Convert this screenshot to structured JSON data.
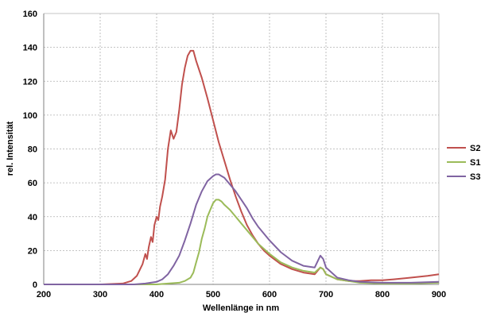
{
  "chart_data": {
    "type": "line",
    "xlabel": "Wellenlänge in nm",
    "ylabel": "rel. Intensität",
    "xlim": [
      200,
      900
    ],
    "ylim": [
      0,
      160
    ],
    "x_ticks": [
      "200",
      "300",
      "400",
      "500",
      "600",
      "700",
      "800",
      "900"
    ],
    "y_ticks": [
      "0",
      "20",
      "40",
      "60",
      "80",
      "100",
      "120",
      "140",
      "160"
    ],
    "grid": true,
    "legend_position": "right",
    "series": [
      {
        "name": "S2",
        "color": "#c0504d",
        "points": [
          [
            200,
            0
          ],
          [
            300,
            0
          ],
          [
            340,
            0.5
          ],
          [
            355,
            2
          ],
          [
            365,
            5
          ],
          [
            375,
            12
          ],
          [
            380,
            18
          ],
          [
            383,
            15
          ],
          [
            386,
            22
          ],
          [
            390,
            28
          ],
          [
            393,
            25
          ],
          [
            396,
            35
          ],
          [
            400,
            40
          ],
          [
            403,
            38
          ],
          [
            406,
            46
          ],
          [
            410,
            52
          ],
          [
            415,
            62
          ],
          [
            420,
            80
          ],
          [
            425,
            91
          ],
          [
            430,
            86
          ],
          [
            435,
            90
          ],
          [
            440,
            103
          ],
          [
            445,
            118
          ],
          [
            450,
            128
          ],
          [
            455,
            135
          ],
          [
            460,
            138
          ],
          [
            465,
            138
          ],
          [
            470,
            132
          ],
          [
            480,
            122
          ],
          [
            490,
            110
          ],
          [
            500,
            97
          ],
          [
            510,
            84
          ],
          [
            520,
            73
          ],
          [
            530,
            62
          ],
          [
            540,
            52
          ],
          [
            550,
            43
          ],
          [
            560,
            35
          ],
          [
            570,
            29
          ],
          [
            580,
            24
          ],
          [
            590,
            20
          ],
          [
            600,
            17
          ],
          [
            620,
            12
          ],
          [
            640,
            9
          ],
          [
            660,
            7
          ],
          [
            680,
            6
          ],
          [
            690,
            10
          ],
          [
            695,
            9
          ],
          [
            700,
            6
          ],
          [
            720,
            3
          ],
          [
            740,
            2
          ],
          [
            760,
            2
          ],
          [
            780,
            2.5
          ],
          [
            800,
            2.5
          ],
          [
            820,
            3
          ],
          [
            850,
            4
          ],
          [
            880,
            5
          ],
          [
            900,
            6
          ]
        ]
      },
      {
        "name": "S1",
        "color": "#9bbb59",
        "points": [
          [
            200,
            0
          ],
          [
            400,
            0
          ],
          [
            420,
            0.5
          ],
          [
            440,
            1
          ],
          [
            450,
            2
          ],
          [
            460,
            4
          ],
          [
            465,
            7
          ],
          [
            470,
            13
          ],
          [
            475,
            19
          ],
          [
            480,
            27
          ],
          [
            485,
            33
          ],
          [
            490,
            40
          ],
          [
            495,
            44
          ],
          [
            500,
            48
          ],
          [
            505,
            50
          ],
          [
            510,
            50
          ],
          [
            515,
            49
          ],
          [
            520,
            47
          ],
          [
            530,
            44
          ],
          [
            540,
            40
          ],
          [
            550,
            36
          ],
          [
            560,
            32
          ],
          [
            570,
            28
          ],
          [
            580,
            24
          ],
          [
            600,
            18
          ],
          [
            620,
            13
          ],
          [
            640,
            10
          ],
          [
            660,
            8
          ],
          [
            680,
            7
          ],
          [
            690,
            10
          ],
          [
            695,
            9
          ],
          [
            700,
            6
          ],
          [
            720,
            3
          ],
          [
            740,
            2
          ],
          [
            760,
            1
          ],
          [
            800,
            0.5
          ],
          [
            850,
            0.5
          ],
          [
            900,
            1
          ]
        ]
      },
      {
        "name": "S3",
        "color": "#8064a2",
        "points": [
          [
            200,
            0
          ],
          [
            360,
            0
          ],
          [
            380,
            0.5
          ],
          [
            400,
            1.5
          ],
          [
            410,
            3
          ],
          [
            420,
            6
          ],
          [
            430,
            11
          ],
          [
            440,
            17
          ],
          [
            450,
            26
          ],
          [
            460,
            36
          ],
          [
            470,
            47
          ],
          [
            480,
            55
          ],
          [
            490,
            61
          ],
          [
            500,
            64
          ],
          [
            505,
            65
          ],
          [
            510,
            65
          ],
          [
            515,
            64
          ],
          [
            520,
            63
          ],
          [
            530,
            59
          ],
          [
            540,
            55
          ],
          [
            550,
            50
          ],
          [
            560,
            45
          ],
          [
            570,
            39
          ],
          [
            580,
            34
          ],
          [
            600,
            26
          ],
          [
            620,
            19
          ],
          [
            640,
            14
          ],
          [
            660,
            11
          ],
          [
            680,
            10
          ],
          [
            690,
            17
          ],
          [
            695,
            15
          ],
          [
            700,
            10
          ],
          [
            720,
            4
          ],
          [
            740,
            2.5
          ],
          [
            760,
            1.5
          ],
          [
            800,
            1
          ],
          [
            850,
            1
          ],
          [
            900,
            1.5
          ]
        ]
      }
    ]
  }
}
